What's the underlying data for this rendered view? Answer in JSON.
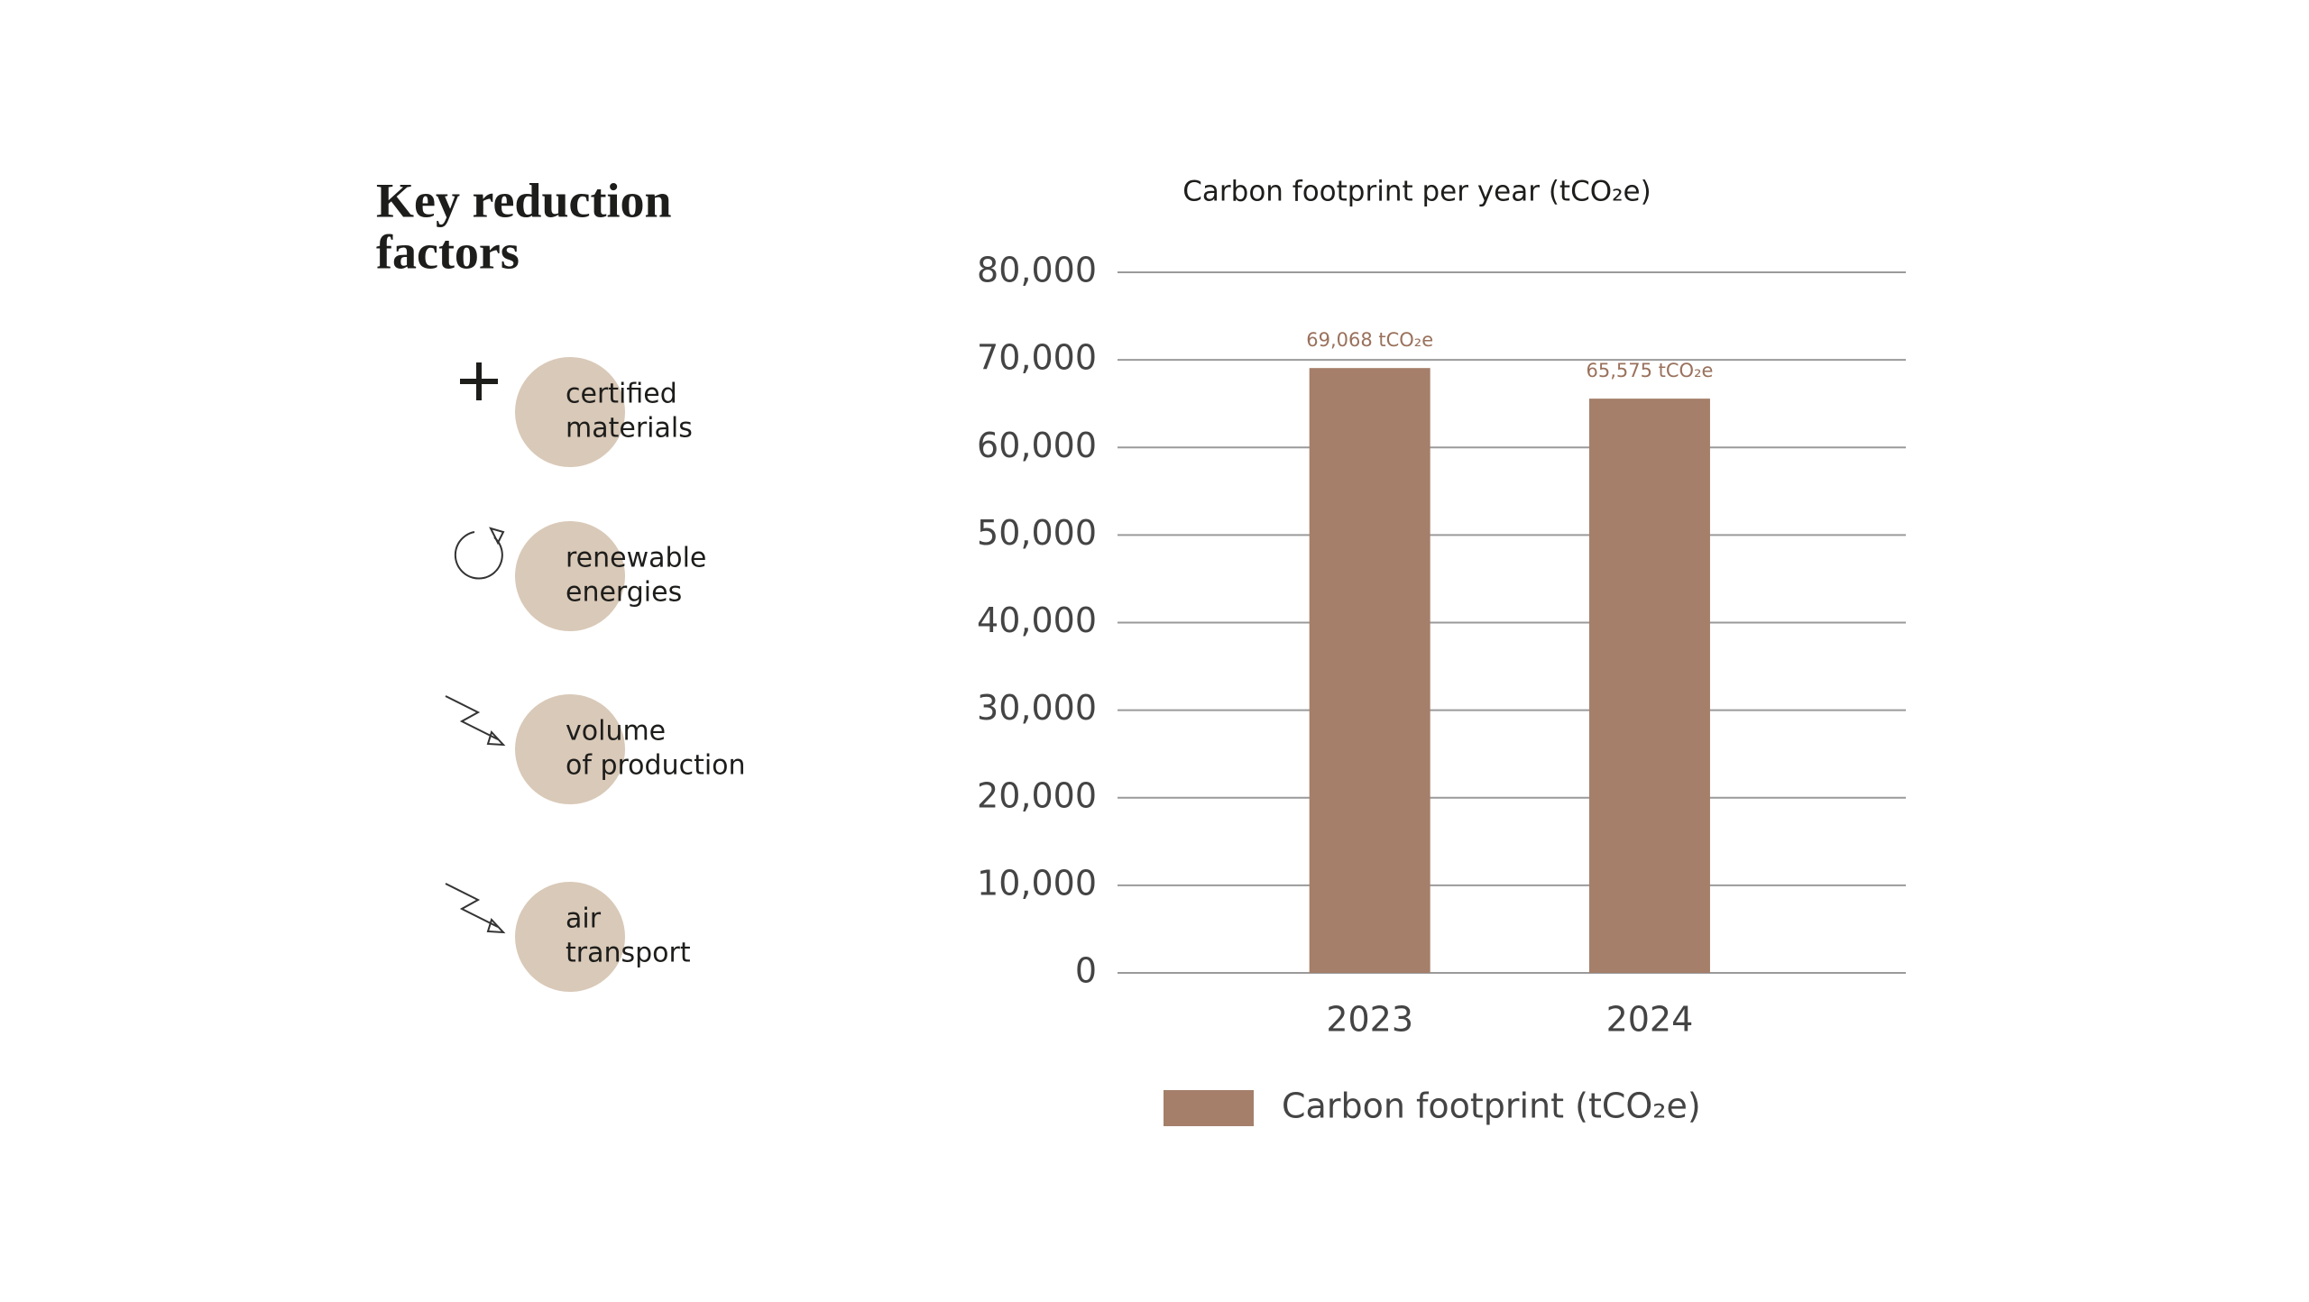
{
  "factors_panel": {
    "title": [
      "Key reduction",
      "factors"
    ],
    "factors": [
      {
        "lines": [
          "certified",
          "materials"
        ]
      },
      {
        "lines": [
          "renewable",
          "energies"
        ]
      },
      {
        "lines": [
          "volume",
          "of production"
        ]
      },
      {
        "lines": [
          "air",
          "transport"
        ]
      }
    ]
  },
  "chart_data": {
    "type": "bar",
    "title": "Carbon footprint per year (tCO₂e)",
    "categories": [
      "2023",
      "2024"
    ],
    "series": [
      {
        "name": "Carbon footprint (tCO₂e)",
        "color": "#a57f6a",
        "values": [
          69068,
          65575
        ],
        "value_labels": [
          "69,068 tCO₂e",
          "65,575 tCO₂e"
        ]
      }
    ],
    "ylim": [
      0,
      80000
    ],
    "yticks": [
      0,
      {
        "value": 10000,
        "label": "10,000"
      },
      {
        "value": 20000,
        "label": "20,000"
      },
      {
        "value": 30000,
        "label": "30,000"
      },
      {
        "value": 40000,
        "label": "40,000"
      },
      {
        "value": 50000,
        "label": "50,000"
      },
      {
        "value": 60000,
        "label": "60,000"
      },
      {
        "value": 70000,
        "label": "70,000"
      },
      {
        "value": 80000,
        "label": "80,000"
      }
    ],
    "grid": true,
    "legend": "bottom"
  }
}
